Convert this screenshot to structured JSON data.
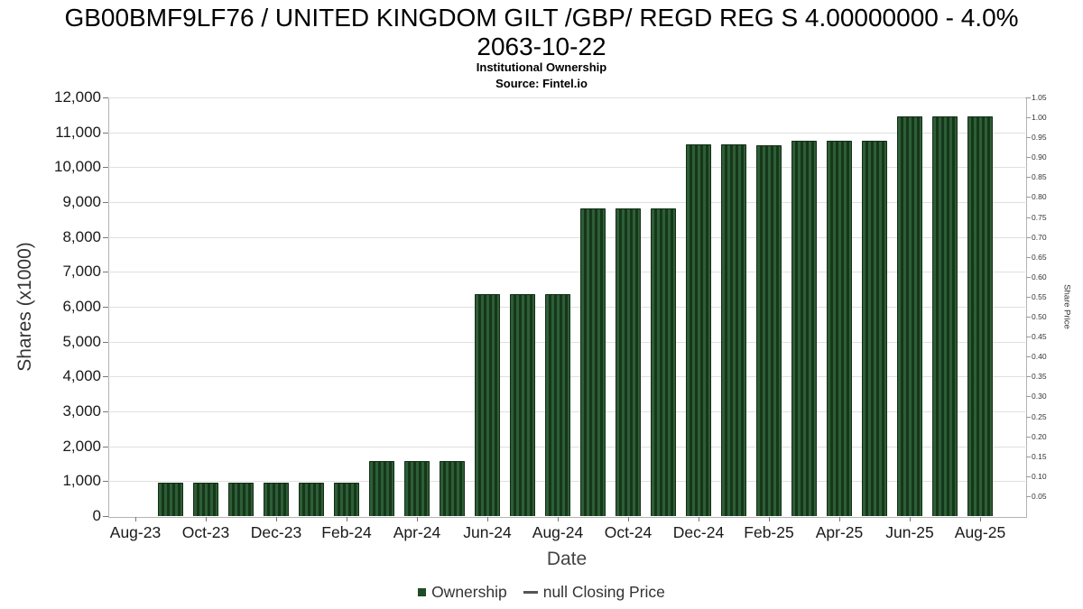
{
  "header": {
    "title_line1": "GB00BMF9LF76 / UNITED KINGDOM GILT /GBP/ REGD REG S 4.00000000 - 4.0%",
    "title_line2": "2063-10-22",
    "subtitle": "Institutional Ownership",
    "source": "Source: Fintel.io"
  },
  "chart_data": {
    "type": "bar",
    "title": "GB00BMF9LF76 / UNITED KINGDOM GILT /GBP/ REGD REG S 4.00000000 - 4.0% 2063-10-22",
    "subtitle": "Institutional Ownership",
    "source": "Source: Fintel.io",
    "xlabel": "Date",
    "ylabel_left": "Shares (x1000)",
    "ylabel_right": "Share Price",
    "grid": "horizontal",
    "legend_position": "bottom",
    "ylim_left": [
      0,
      12000
    ],
    "right_axis_max": 1.05,
    "left_ticks": [
      "0",
      "1,000",
      "2,000",
      "3,000",
      "4,000",
      "5,000",
      "6,000",
      "7,000",
      "8,000",
      "9,000",
      "10,000",
      "11,000",
      "12,000"
    ],
    "right_ticks": [
      "0.05",
      "0.10",
      "0.15",
      "0.20",
      "0.25",
      "0.30",
      "0.35",
      "0.40",
      "0.45",
      "0.50",
      "0.55",
      "0.60",
      "0.65",
      "0.70",
      "0.75",
      "0.80",
      "0.85",
      "0.90",
      "0.95",
      "1.00",
      "1.05"
    ],
    "x_tick_labels": [
      "Aug-23",
      "Oct-23",
      "Dec-23",
      "Feb-24",
      "Apr-24",
      "Jun-24",
      "Aug-24",
      "Oct-24",
      "Dec-24",
      "Feb-25",
      "Apr-25",
      "Jun-25",
      "Aug-25"
    ],
    "categories": [
      "Sep-23",
      "Oct-23",
      "Nov-23",
      "Dec-23",
      "Jan-24",
      "Feb-24",
      "Mar-24",
      "Apr-24",
      "May-24",
      "Jun-24",
      "Jul-24",
      "Aug-24",
      "Sep-24",
      "Oct-24",
      "Nov-24",
      "Dec-24",
      "Jan-25",
      "Feb-25",
      "Mar-25",
      "Apr-25",
      "May-25",
      "Jun-25",
      "Jul-25",
      "Aug-25"
    ],
    "values": [
      950,
      950,
      950,
      950,
      950,
      950,
      1580,
      1580,
      1580,
      6350,
      6350,
      6350,
      8820,
      8820,
      8820,
      10650,
      10650,
      10630,
      10750,
      10750,
      10750,
      11450,
      11450,
      11450
    ],
    "bar_color": "#2e5e35",
    "bar_stripe_color": "#15371b",
    "bar_border_color": "#122d17",
    "legend": [
      {
        "label": "Ownership",
        "marker": "square",
        "color": "#1f4b25"
      },
      {
        "label": "null Closing Price",
        "marker": "line",
        "color": "#555555"
      }
    ]
  }
}
